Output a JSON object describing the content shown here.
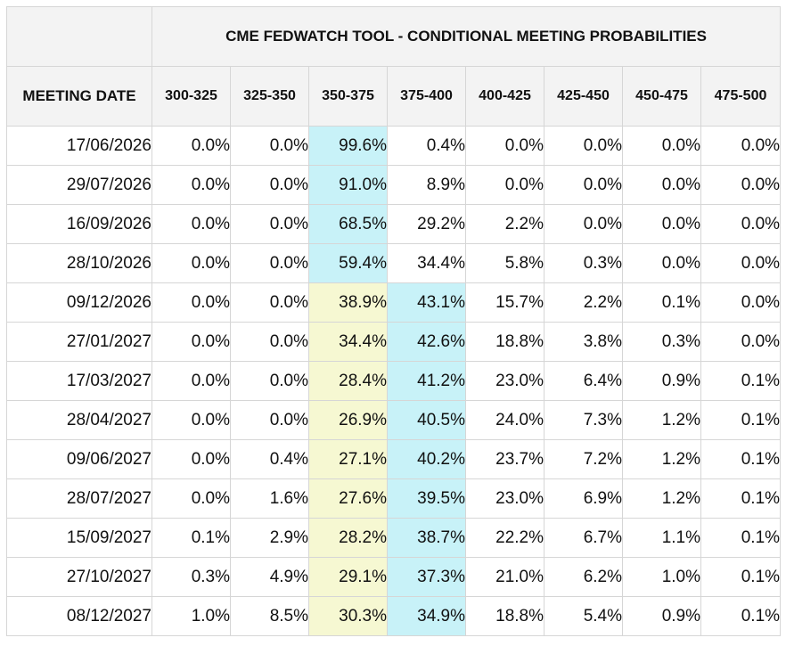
{
  "table": {
    "title": "CME FEDWATCH TOOL - CONDITIONAL MEETING PROBABILITIES",
    "date_header": "MEETING DATE",
    "ranges": [
      "300-325",
      "325-350",
      "350-375",
      "375-400",
      "400-425",
      "425-450",
      "450-475",
      "475-500"
    ],
    "rows": [
      {
        "date": "17/06/2026",
        "values": [
          "0.0%",
          "0.0%",
          "99.6%",
          "0.4%",
          "0.0%",
          "0.0%",
          "0.0%",
          "0.0%"
        ]
      },
      {
        "date": "29/07/2026",
        "values": [
          "0.0%",
          "0.0%",
          "91.0%",
          "8.9%",
          "0.0%",
          "0.0%",
          "0.0%",
          "0.0%"
        ]
      },
      {
        "date": "16/09/2026",
        "values": [
          "0.0%",
          "0.0%",
          "68.5%",
          "29.2%",
          "2.2%",
          "0.0%",
          "0.0%",
          "0.0%"
        ]
      },
      {
        "date": "28/10/2026",
        "values": [
          "0.0%",
          "0.0%",
          "59.4%",
          "34.4%",
          "5.8%",
          "0.3%",
          "0.0%",
          "0.0%"
        ]
      },
      {
        "date": "09/12/2026",
        "values": [
          "0.0%",
          "0.0%",
          "38.9%",
          "43.1%",
          "15.7%",
          "2.2%",
          "0.1%",
          "0.0%"
        ]
      },
      {
        "date": "27/01/2027",
        "values": [
          "0.0%",
          "0.0%",
          "34.4%",
          "42.6%",
          "18.8%",
          "3.8%",
          "0.3%",
          "0.0%"
        ]
      },
      {
        "date": "17/03/2027",
        "values": [
          "0.0%",
          "0.0%",
          "28.4%",
          "41.2%",
          "23.0%",
          "6.4%",
          "0.9%",
          "0.1%"
        ]
      },
      {
        "date": "28/04/2027",
        "values": [
          "0.0%",
          "0.0%",
          "26.9%",
          "40.5%",
          "24.0%",
          "7.3%",
          "1.2%",
          "0.1%"
        ]
      },
      {
        "date": "09/06/2027",
        "values": [
          "0.0%",
          "0.4%",
          "27.1%",
          "40.2%",
          "23.7%",
          "7.2%",
          "1.2%",
          "0.1%"
        ]
      },
      {
        "date": "28/07/2027",
        "values": [
          "0.0%",
          "1.6%",
          "27.6%",
          "39.5%",
          "23.0%",
          "6.9%",
          "1.2%",
          "0.1%"
        ]
      },
      {
        "date": "15/09/2027",
        "values": [
          "0.1%",
          "2.9%",
          "28.2%",
          "38.7%",
          "22.2%",
          "6.7%",
          "1.1%",
          "0.1%"
        ]
      },
      {
        "date": "27/10/2027",
        "values": [
          "0.3%",
          "4.9%",
          "29.1%",
          "37.3%",
          "21.0%",
          "6.2%",
          "1.0%",
          "0.1%"
        ]
      },
      {
        "date": "08/12/2027",
        "values": [
          "1.0%",
          "8.5%",
          "30.3%",
          "34.9%",
          "18.8%",
          "5.4%",
          "0.9%",
          "0.1%"
        ]
      }
    ],
    "highlight_colors": {
      "max_probability": "#c8f2f8",
      "previous_max": "#f6f8d2"
    },
    "highlights": [
      {
        "max_col": 2,
        "prev_col": null
      },
      {
        "max_col": 2,
        "prev_col": null
      },
      {
        "max_col": 2,
        "prev_col": null
      },
      {
        "max_col": 2,
        "prev_col": null
      },
      {
        "max_col": 3,
        "prev_col": 2
      },
      {
        "max_col": 3,
        "prev_col": 2
      },
      {
        "max_col": 3,
        "prev_col": 2
      },
      {
        "max_col": 3,
        "prev_col": 2
      },
      {
        "max_col": 3,
        "prev_col": 2
      },
      {
        "max_col": 3,
        "prev_col": 2
      },
      {
        "max_col": 3,
        "prev_col": 2
      },
      {
        "max_col": 3,
        "prev_col": 2
      },
      {
        "max_col": 3,
        "prev_col": 2
      }
    ]
  }
}
